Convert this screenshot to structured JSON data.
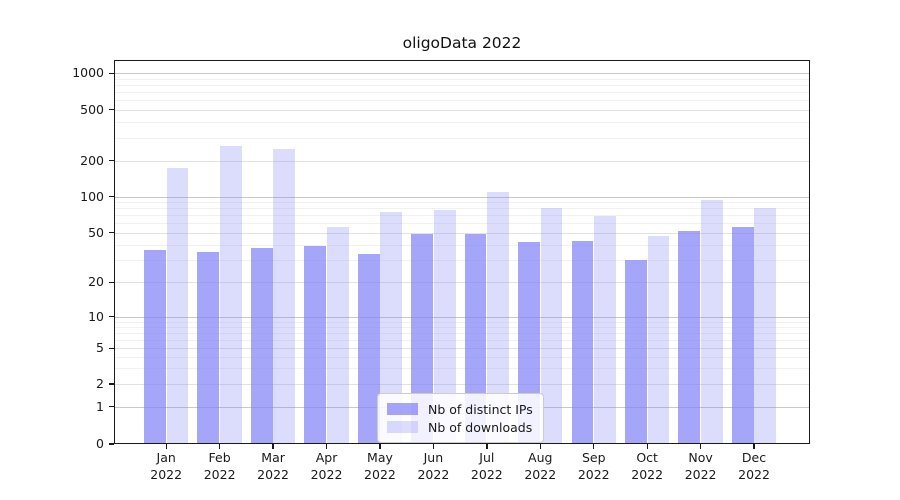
{
  "title": "oligoData 2022",
  "chart_data": {
    "type": "bar",
    "title": "oligoData 2022",
    "categories": [
      "Jan 2022",
      "Feb 2022",
      "Mar 2022",
      "Apr 2022",
      "May 2022",
      "Jun 2022",
      "Jul 2022",
      "Aug 2022",
      "Sep 2022",
      "Oct 2022",
      "Nov 2022",
      "Dec 2022"
    ],
    "x_tick_months": [
      "Jan",
      "Feb",
      "Mar",
      "Apr",
      "May",
      "Jun",
      "Jul",
      "Aug",
      "Sep",
      "Oct",
      "Nov",
      "Dec"
    ],
    "x_tick_year": "2022",
    "series": [
      {
        "name": "Nb of distinct IPs",
        "color": "#8282f8",
        "alpha": 0.72,
        "solid_color": "#a8a8fa",
        "values": [
          36,
          35,
          38,
          39,
          34,
          49,
          49,
          42,
          43,
          30,
          52,
          56
        ]
      },
      {
        "name": "Nb of downloads",
        "color": "#8282f8",
        "alpha": 0.28,
        "solid_color": "#dcdcfa",
        "values": [
          175,
          260,
          245,
          56,
          75,
          78,
          110,
          81,
          69,
          47,
          94,
          80
        ]
      }
    ],
    "yscale": "symlog",
    "ylim": [
      0,
      1000
    ],
    "y_ticks": [
      0,
      1,
      2,
      5,
      10,
      20,
      50,
      100,
      200,
      500,
      1000
    ],
    "grid": true,
    "legend": {
      "position": "lower center",
      "entries": [
        "Nb of distinct IPs",
        "Nb of downloads"
      ]
    }
  }
}
